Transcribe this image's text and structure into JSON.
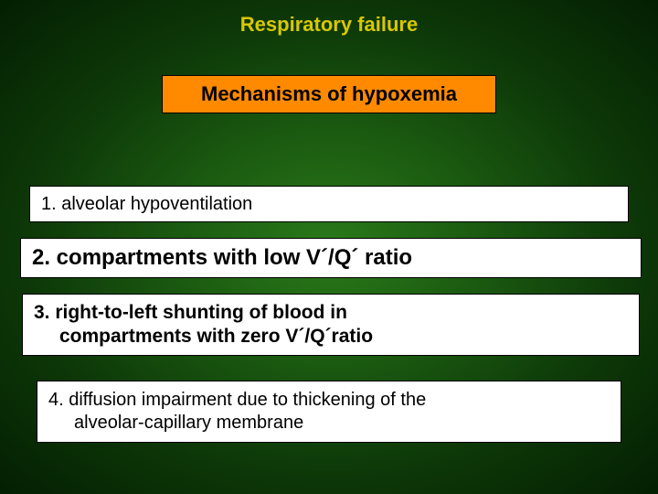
{
  "colors": {
    "title_color": "#d8c800",
    "subtitle_bg": "#ff8a00",
    "subtitle_text": "#000000",
    "item_bg": "#ffffff",
    "item_text": "#000000",
    "slide_gradient_inner": "#2a7a1a",
    "slide_gradient_outer": "#041f02"
  },
  "typography": {
    "title_fontsize": 22,
    "subtitle_fontsize": 22,
    "item1_fontsize": 20,
    "item2_fontsize": 24,
    "item3_fontsize": 21,
    "item4_fontsize": 20,
    "title_weight": "bold",
    "subtitle_weight": "bold",
    "item1_weight": "normal",
    "item2_weight": "bold",
    "item3_weight": "bold",
    "item4_weight": "normal",
    "font_family": "Verdana"
  },
  "layout": {
    "slide_width": 720,
    "slide_height": 540,
    "item_border": "1px solid #000"
  },
  "title": "Respiratory failure",
  "subtitle": "Mechanisms of hypoxemia",
  "items": {
    "i1": "1. alveolar hypoventilation",
    "i2": "2. compartments with low V´/Q´ ratio",
    "i3_l1": "3. right-to-left shunting of blood in",
    "i3_l2": "compartments with zero V´/Q´ratio",
    "i4_l1": "4. diffusion impairment due to thickening of the",
    "i4_l2": "alveolar-capillary membrane"
  }
}
